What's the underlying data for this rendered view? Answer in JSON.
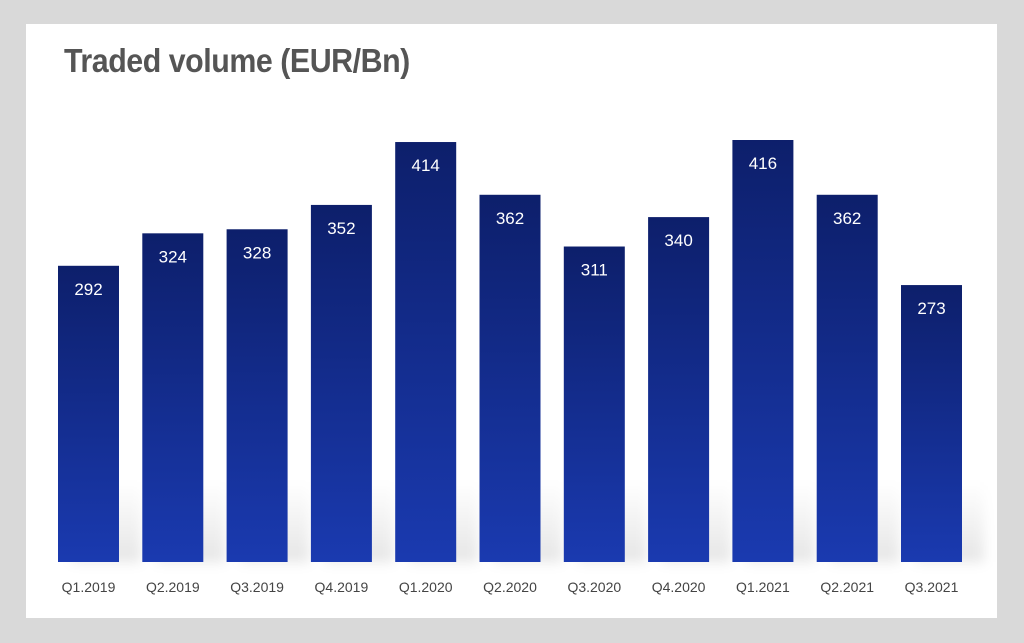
{
  "chart_data": {
    "type": "bar",
    "title": "Traded volume (EUR/Bn)",
    "xlabel": "",
    "ylabel": "",
    "categories": [
      "Q1.2019",
      "Q2.2019",
      "Q3.2019",
      "Q4.2019",
      "Q1.2020",
      "Q2.2020",
      "Q3.2020",
      "Q4.2020",
      "Q1.2021",
      "Q2.2021",
      "Q3.2021"
    ],
    "values": [
      292,
      324,
      328,
      352,
      414,
      362,
      311,
      340,
      416,
      362,
      273
    ],
    "value_labels": [
      "292",
      "324",
      "328",
      "352",
      "414",
      "362",
      "311",
      "340",
      "416",
      "362",
      "273"
    ],
    "ylim": [
      0,
      416
    ],
    "grid": false,
    "legend": "none",
    "colors": {
      "bar_top": "#0d1f6b",
      "bar_bottom": "#1a3ab0",
      "title": "#555555",
      "frame": "#d9d9d9"
    }
  }
}
